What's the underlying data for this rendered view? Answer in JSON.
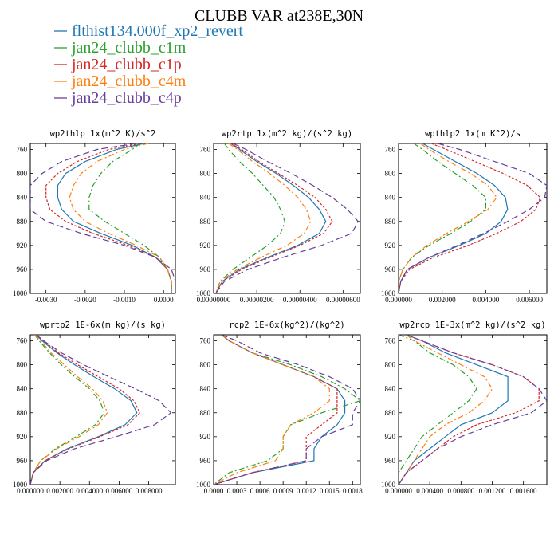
{
  "title": "CLUBB VAR at238E,30N",
  "legend": [
    {
      "name": "flthist134.000f_xp2_revert",
      "color": "#1f77b4",
      "dash": "solid"
    },
    {
      "name": "jan24_clubb_c1m",
      "color": "#2ca02c",
      "dash": "dashdot"
    },
    {
      "name": "jan24_clubb_c1p",
      "color": "#d62728",
      "dash": "dot"
    },
    {
      "name": "jan24_clubb_c4m",
      "color": "#ff7f0e",
      "dash": "dashdot"
    },
    {
      "name": "jan24_clubb_c4p",
      "color": "#6a3d9a",
      "dash": "dash"
    }
  ],
  "chart_data": [
    {
      "type": "line",
      "title": "wp2thlp  1x(m^2 K)/s^2",
      "xlim": [
        -0.0034,
        0.0003
      ],
      "ylim": [
        1000,
        750
      ],
      "xticks": [
        -0.003,
        -0.002,
        -0.001,
        0.0
      ],
      "xticklabels": [
        "-0.0030",
        "-0.0020",
        "-0.0010",
        "0.0000"
      ],
      "yticks": [
        760,
        800,
        840,
        880,
        920,
        960,
        1000
      ],
      "y": [
        750,
        760,
        780,
        800,
        820,
        840,
        860,
        880,
        900,
        920,
        940,
        960,
        980,
        1000
      ],
      "series": [
        {
          "name": "flthist134.000f_xp2_revert",
          "values": [
            -0.0005,
            -0.0012,
            -0.002,
            -0.0025,
            -0.0027,
            -0.0027,
            -0.0026,
            -0.0023,
            -0.0016,
            -0.0008,
            -0.0002,
            0.0001,
            0.0002,
            0.0002
          ]
        },
        {
          "name": "jan24_clubb_c1m",
          "values": [
            -0.0006,
            -0.0008,
            -0.0013,
            -0.0016,
            -0.0018,
            -0.0019,
            -0.0019,
            -0.0015,
            -0.001,
            -0.0005,
            -0.0001,
            0.0001,
            0.0002,
            0.0002
          ]
        },
        {
          "name": "jan24_clubb_c1p",
          "values": [
            -0.0006,
            -0.0014,
            -0.0022,
            -0.0027,
            -0.003,
            -0.003,
            -0.0029,
            -0.0025,
            -0.0018,
            -0.0009,
            -0.0002,
            0.0001,
            0.0002,
            0.0002
          ]
        },
        {
          "name": "jan24_clubb_c4m",
          "values": [
            -0.0004,
            -0.001,
            -0.0017,
            -0.0021,
            -0.0023,
            -0.0024,
            -0.0023,
            -0.002,
            -0.0014,
            -0.0007,
            -0.0001,
            0.0001,
            0.0002,
            0.0002
          ]
        },
        {
          "name": "jan24_clubb_c4p",
          "values": [
            -0.0007,
            -0.0017,
            -0.0026,
            -0.0031,
            -0.0034,
            -0.0034,
            -0.0034,
            -0.003,
            -0.0021,
            -0.001,
            -0.0002,
            0.0002,
            0.0003,
            0.0003
          ]
        }
      ]
    },
    {
      "type": "line",
      "title": "wp2rtp  1x(m^2 kg)/(s^2 kg)",
      "xlim": [
        0.0,
        6.8e-06
      ],
      "ylim": [
        1000,
        750
      ],
      "xticks": [
        0.0,
        2e-06,
        4e-06,
        6e-06
      ],
      "xticklabels": [
        "0.00000000",
        "0.00000200",
        "0.00000400",
        "0.00000600"
      ],
      "yticks": [
        760,
        800,
        840,
        880,
        920,
        960,
        1000
      ],
      "y": [
        750,
        760,
        780,
        800,
        820,
        840,
        860,
        880,
        900,
        920,
        940,
        960,
        980,
        1000
      ],
      "series": [
        {
          "name": "flthist134.000f_xp2_revert",
          "values": [
            8e-07,
            1.2e-06,
            2e-06,
            2.9e-06,
            3.7e-06,
            4.4e-06,
            4.9e-06,
            5.2e-06,
            4.9e-06,
            3.9e-06,
            2.5e-06,
            1.2e-06,
            4e-07,
            1e-07
          ]
        },
        {
          "name": "jan24_clubb_c1m",
          "values": [
            5e-07,
            7e-07,
            1.2e-06,
            1.8e-06,
            2.3e-06,
            2.8e-06,
            3.1e-06,
            3.3e-06,
            3.1e-06,
            2.5e-06,
            1.7e-06,
            9e-07,
            3e-07,
            1e-07
          ]
        },
        {
          "name": "jan24_clubb_c1p",
          "values": [
            8e-07,
            1.3e-06,
            2.1e-06,
            3e-06,
            3.9e-06,
            4.7e-06,
            5.2e-06,
            5.5e-06,
            5.1e-06,
            4e-06,
            2.6e-06,
            1.3e-06,
            4e-07,
            1e-07
          ]
        },
        {
          "name": "jan24_clubb_c4m",
          "values": [
            7e-07,
            1.1e-06,
            1.8e-06,
            2.6e-06,
            3.3e-06,
            3.9e-06,
            4.3e-06,
            4.5e-06,
            4.2e-06,
            3.4e-06,
            2.2e-06,
            1.1e-06,
            3e-07,
            1e-07
          ]
        },
        {
          "name": "jan24_clubb_c4p",
          "values": [
            9e-07,
            1.5e-06,
            2.5e-06,
            3.6e-06,
            4.6e-06,
            5.5e-06,
            6.2e-06,
            6.7e-06,
            6.4e-06,
            5e-06,
            3.2e-06,
            1.6e-06,
            5e-07,
            1e-07
          ]
        }
      ]
    },
    {
      "type": "line",
      "title": "wpthlp2  1x(m K^2)/s",
      "xlim": [
        0.0,
        0.0068
      ],
      "ylim": [
        1000,
        750
      ],
      "xticks": [
        0.0,
        0.002,
        0.004,
        0.006
      ],
      "xticklabels": [
        "0.000000",
        "0.002000",
        "0.004000",
        "0.006000"
      ],
      "yticks": [
        760,
        800,
        840,
        880,
        920,
        960,
        1000
      ],
      "y": [
        750,
        760,
        780,
        800,
        820,
        840,
        860,
        880,
        900,
        920,
        940,
        960,
        980,
        1000
      ],
      "series": [
        {
          "name": "flthist134.000f_xp2_revert",
          "values": [
            0.0011,
            0.0016,
            0.0026,
            0.0036,
            0.0044,
            0.0049,
            0.005,
            0.0047,
            0.004,
            0.0028,
            0.0014,
            0.0004,
            0.0001,
            0.0
          ]
        },
        {
          "name": "jan24_clubb_c1m",
          "values": [
            0.0007,
            0.0011,
            0.0018,
            0.0026,
            0.0034,
            0.004,
            0.004,
            0.0033,
            0.0024,
            0.0014,
            0.0006,
            0.0002,
            0.0,
            0.0
          ]
        },
        {
          "name": "jan24_clubb_c1p",
          "values": [
            0.0015,
            0.0022,
            0.0035,
            0.0048,
            0.0059,
            0.0065,
            0.0063,
            0.0056,
            0.0045,
            0.0032,
            0.0016,
            0.0005,
            0.0001,
            0.0
          ]
        },
        {
          "name": "jan24_clubb_c4m",
          "values": [
            0.001,
            0.0014,
            0.0023,
            0.0033,
            0.0041,
            0.0045,
            0.0041,
            0.0032,
            0.0022,
            0.0013,
            0.0006,
            0.0002,
            0.0,
            0.0
          ]
        },
        {
          "name": "jan24_clubb_c4p",
          "values": [
            0.0018,
            0.0028,
            0.0044,
            0.006,
            0.0068,
            0.0067,
            0.006,
            0.005,
            0.0039,
            0.0027,
            0.0014,
            0.0004,
            0.0001,
            0.0
          ]
        }
      ]
    },
    {
      "type": "line",
      "title": "wprtp2  1E-6x(m kg)/(s kg)",
      "xlim": [
        0.0,
        0.0098
      ],
      "ylim": [
        1000,
        750
      ],
      "xticks": [
        0.0,
        0.002,
        0.004,
        0.006,
        0.008
      ],
      "xticklabels": [
        "0.000000",
        "0.002000",
        "0.004000",
        "0.006000",
        "0.008000"
      ],
      "yticks": [
        760,
        800,
        840,
        880,
        920,
        960,
        1000
      ],
      "y": [
        750,
        760,
        780,
        800,
        820,
        840,
        860,
        880,
        900,
        920,
        940,
        960,
        980,
        1000
      ],
      "series": [
        {
          "name": "flthist134.000f_xp2_revert",
          "values": [
            0.0004,
            0.0008,
            0.0018,
            0.003,
            0.0043,
            0.0057,
            0.0068,
            0.0072,
            0.0064,
            0.0046,
            0.0025,
            0.001,
            0.0002,
            0.0
          ]
        },
        {
          "name": "jan24_clubb_c1m",
          "values": [
            0.0003,
            0.0006,
            0.0013,
            0.0021,
            0.003,
            0.004,
            0.0047,
            0.005,
            0.0044,
            0.0031,
            0.0017,
            0.0007,
            0.0002,
            0.0
          ]
        },
        {
          "name": "jan24_clubb_c1p",
          "values": [
            0.0004,
            0.0009,
            0.0019,
            0.0032,
            0.0046,
            0.006,
            0.007,
            0.0074,
            0.0066,
            0.0047,
            0.0026,
            0.001,
            0.0002,
            0.0
          ]
        },
        {
          "name": "jan24_clubb_c4m",
          "values": [
            0.0003,
            0.0007,
            0.0014,
            0.0023,
            0.0032,
            0.0042,
            0.0049,
            0.0052,
            0.0046,
            0.0033,
            0.0018,
            0.0007,
            0.0002,
            0.0
          ]
        },
        {
          "name": "jan24_clubb_c4p",
          "values": [
            0.0004,
            0.0009,
            0.0021,
            0.0036,
            0.0053,
            0.0071,
            0.0087,
            0.0095,
            0.0084,
            0.0058,
            0.003,
            0.0011,
            0.0002,
            0.0
          ]
        }
      ]
    },
    {
      "type": "line",
      "title": "rcp2  1E-6x(kg^2)/(kg^2)",
      "xlim": [
        0.0,
        0.0019
      ],
      "ylim": [
        1000,
        750
      ],
      "xticks": [
        0.0,
        0.0003,
        0.0006,
        0.0009,
        0.0012,
        0.0015,
        0.0018
      ],
      "xticklabels": [
        "0.0000",
        "0.0003",
        "0.0006",
        "0.0009",
        "0.0012",
        "0.0015",
        "0.0018"
      ],
      "yticks": [
        760,
        800,
        840,
        880,
        920,
        960,
        1000
      ],
      "y": [
        750,
        760,
        780,
        800,
        820,
        840,
        860,
        880,
        900,
        920,
        940,
        960,
        980,
        1000
      ],
      "series": [
        {
          "name": "flthist134.000f_xp2_revert",
          "values": [
            0.0001,
            0.0002,
            0.0005,
            0.0009,
            0.0013,
            0.0016,
            0.0017,
            0.0017,
            0.0016,
            0.0014,
            0.0013,
            0.0013,
            0.0005,
            0.0
          ]
        },
        {
          "name": "jan24_clubb_c1m",
          "values": [
            0.0001,
            0.0002,
            0.0005,
            0.001,
            0.0014,
            0.0017,
            0.0019,
            0.0014,
            0.001,
            0.0009,
            0.0009,
            0.0007,
            0.0002,
            0.0
          ]
        },
        {
          "name": "jan24_clubb_c1p",
          "values": [
            0.0001,
            0.0002,
            0.0005,
            0.0009,
            0.0013,
            0.0016,
            0.0016,
            0.0016,
            0.0014,
            0.0012,
            0.0012,
            0.0012,
            0.0005,
            0.0
          ]
        },
        {
          "name": "jan24_clubb_c4m",
          "values": [
            0.0001,
            0.0002,
            0.0005,
            0.0009,
            0.0013,
            0.0015,
            0.0015,
            0.0013,
            0.001,
            0.0009,
            0.0009,
            0.0008,
            0.0003,
            0.0
          ]
        },
        {
          "name": "jan24_clubb_c4p",
          "values": [
            0.0001,
            0.0003,
            0.0006,
            0.0011,
            0.0015,
            0.0018,
            0.0019,
            0.0018,
            0.0018,
            0.0014,
            0.0012,
            0.0012,
            0.0005,
            0.0
          ]
        }
      ]
    },
    {
      "type": "line",
      "title": "wp2rcp  1E-3x(m^2 kg)/(s^2 kg)",
      "xlim": [
        0.0,
        0.0019
      ],
      "ylim": [
        1000,
        750
      ],
      "xticks": [
        0.0,
        0.0004,
        0.0008,
        0.0012,
        0.0016
      ],
      "xticklabels": [
        "0.000000",
        "0.000400",
        "0.000800",
        "0.001200",
        "0.001600"
      ],
      "yticks": [
        760,
        800,
        840,
        880,
        920,
        960,
        1000
      ],
      "y": [
        750,
        760,
        780,
        800,
        820,
        840,
        860,
        880,
        900,
        920,
        940,
        960,
        980,
        1000
      ],
      "series": [
        {
          "name": "flthist134.000f_xp2_revert",
          "values": [
            0.0001,
            0.0003,
            0.0006,
            0.001,
            0.0014,
            0.0014,
            0.0014,
            0.0012,
            0.0008,
            0.0006,
            0.0004,
            0.0002,
            0.0001,
            0.0
          ]
        },
        {
          "name": "jan24_clubb_c1m",
          "values": [
            0.0,
            0.0002,
            0.0004,
            0.0007,
            0.0009,
            0.001,
            0.0009,
            0.0007,
            0.0005,
            0.0003,
            0.0002,
            0.0001,
            0.0,
            0.0
          ]
        },
        {
          "name": "jan24_clubb_c1p",
          "values": [
            0.0001,
            0.0003,
            0.0007,
            0.0012,
            0.0016,
            0.0018,
            0.0018,
            0.0015,
            0.001,
            0.0007,
            0.0005,
            0.0003,
            0.0001,
            0.0
          ]
        },
        {
          "name": "jan24_clubb_c4m",
          "values": [
            0.0001,
            0.0002,
            0.0005,
            0.0008,
            0.0011,
            0.0012,
            0.0011,
            0.0009,
            0.0006,
            0.0004,
            0.0003,
            0.0002,
            0.0001,
            0.0
          ]
        },
        {
          "name": "jan24_clubb_c4p",
          "values": [
            0.0001,
            0.0003,
            0.0007,
            0.0012,
            0.0016,
            0.0018,
            0.0019,
            0.0017,
            0.0012,
            0.0008,
            0.0005,
            0.0003,
            0.0001,
            0.0
          ]
        }
      ]
    }
  ]
}
